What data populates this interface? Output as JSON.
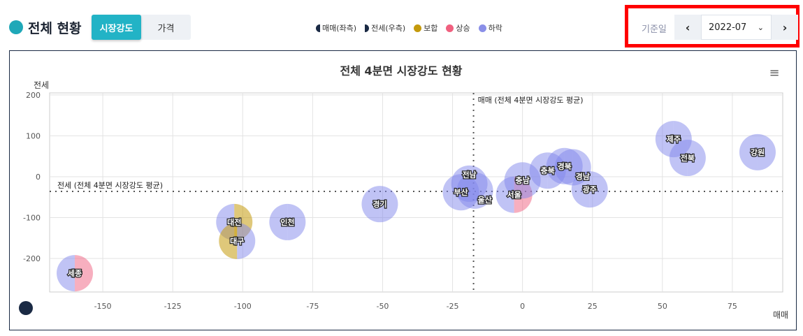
{
  "header": {
    "title": "전체 현황",
    "tabs": [
      {
        "label": "시장강도",
        "active": true
      },
      {
        "label": "가격",
        "active": false
      }
    ]
  },
  "legend": {
    "sale": "매매(좌측)",
    "jeonse": "전세(우측)",
    "flat": "보합",
    "up": "상승",
    "down": "하락"
  },
  "date": {
    "label": "기준일",
    "value": "2022-07",
    "prev": "‹",
    "next": "›",
    "chevron": "⌄"
  },
  "colors": {
    "flat": "#c49a0c",
    "up": "#f0607f",
    "down": "#8a8fe8",
    "accent": "#22b3c6"
  },
  "chart_data": {
    "type": "bubble",
    "title": "전체 4분면 시장강도 현황",
    "xlabel": "매매",
    "ylabel": "전세",
    "xlim": [
      -169,
      93
    ],
    "ylim": [
      -282,
      205
    ],
    "xticks": [
      -150,
      -125,
      -100,
      -75,
      -50,
      -25,
      0,
      25,
      50,
      75
    ],
    "yticks": [
      200,
      100,
      0,
      -100,
      -200
    ],
    "grid": true,
    "avg_lines": {
      "x": -17.5,
      "x_label": "매매 (전체 4분면 시장강도 평균)",
      "y": -36,
      "y_label": "전세 (전체 4분면 시장강도 평균)"
    },
    "points": [
      {
        "name": "세종",
        "x": -160,
        "y": -236,
        "sale": "down",
        "jeonse": "up"
      },
      {
        "name": "대전",
        "x": -103,
        "y": -111,
        "sale": "down",
        "jeonse": "flat"
      },
      {
        "name": "대구",
        "x": -102,
        "y": -157,
        "sale": "flat",
        "jeonse": "down"
      },
      {
        "name": "인천",
        "x": -84,
        "y": -111,
        "sale": "down",
        "jeonse": "down"
      },
      {
        "name": "경기",
        "x": -51,
        "y": -67,
        "sale": "down",
        "jeonse": "down"
      },
      {
        "name": "부산",
        "x": -22,
        "y": -38,
        "sale": "down",
        "jeonse": "down"
      },
      {
        "name": "전남",
        "x": -19,
        "y": -17,
        "sale": "down",
        "jeonse": "down"
      },
      {
        "name": "울산",
        "x": -17,
        "y": -34,
        "sale": "down",
        "jeonse": "down"
      },
      {
        "name": "서울",
        "x": -3,
        "y": -44,
        "sale": "down",
        "jeonse": "up"
      },
      {
        "name": "충남",
        "x": 0,
        "y": -9,
        "sale": "down",
        "jeonse": "down"
      },
      {
        "name": "충북",
        "x": 9,
        "y": 15,
        "sale": "down",
        "jeonse": "down"
      },
      {
        "name": "경북",
        "x": 15,
        "y": 26,
        "sale": "down",
        "jeonse": "down"
      },
      {
        "name": "경남",
        "x": 18,
        "y": 23,
        "sale": "down",
        "jeonse": "down"
      },
      {
        "name": "광주",
        "x": 24,
        "y": -31,
        "sale": "down",
        "jeonse": "down"
      },
      {
        "name": "제주",
        "x": 54,
        "y": 92,
        "sale": "down",
        "jeonse": "down"
      },
      {
        "name": "전북",
        "x": 59,
        "y": 46,
        "sale": "down",
        "jeonse": "down"
      },
      {
        "name": "강원",
        "x": 84,
        "y": 60,
        "sale": "down",
        "jeonse": "down"
      }
    ]
  }
}
